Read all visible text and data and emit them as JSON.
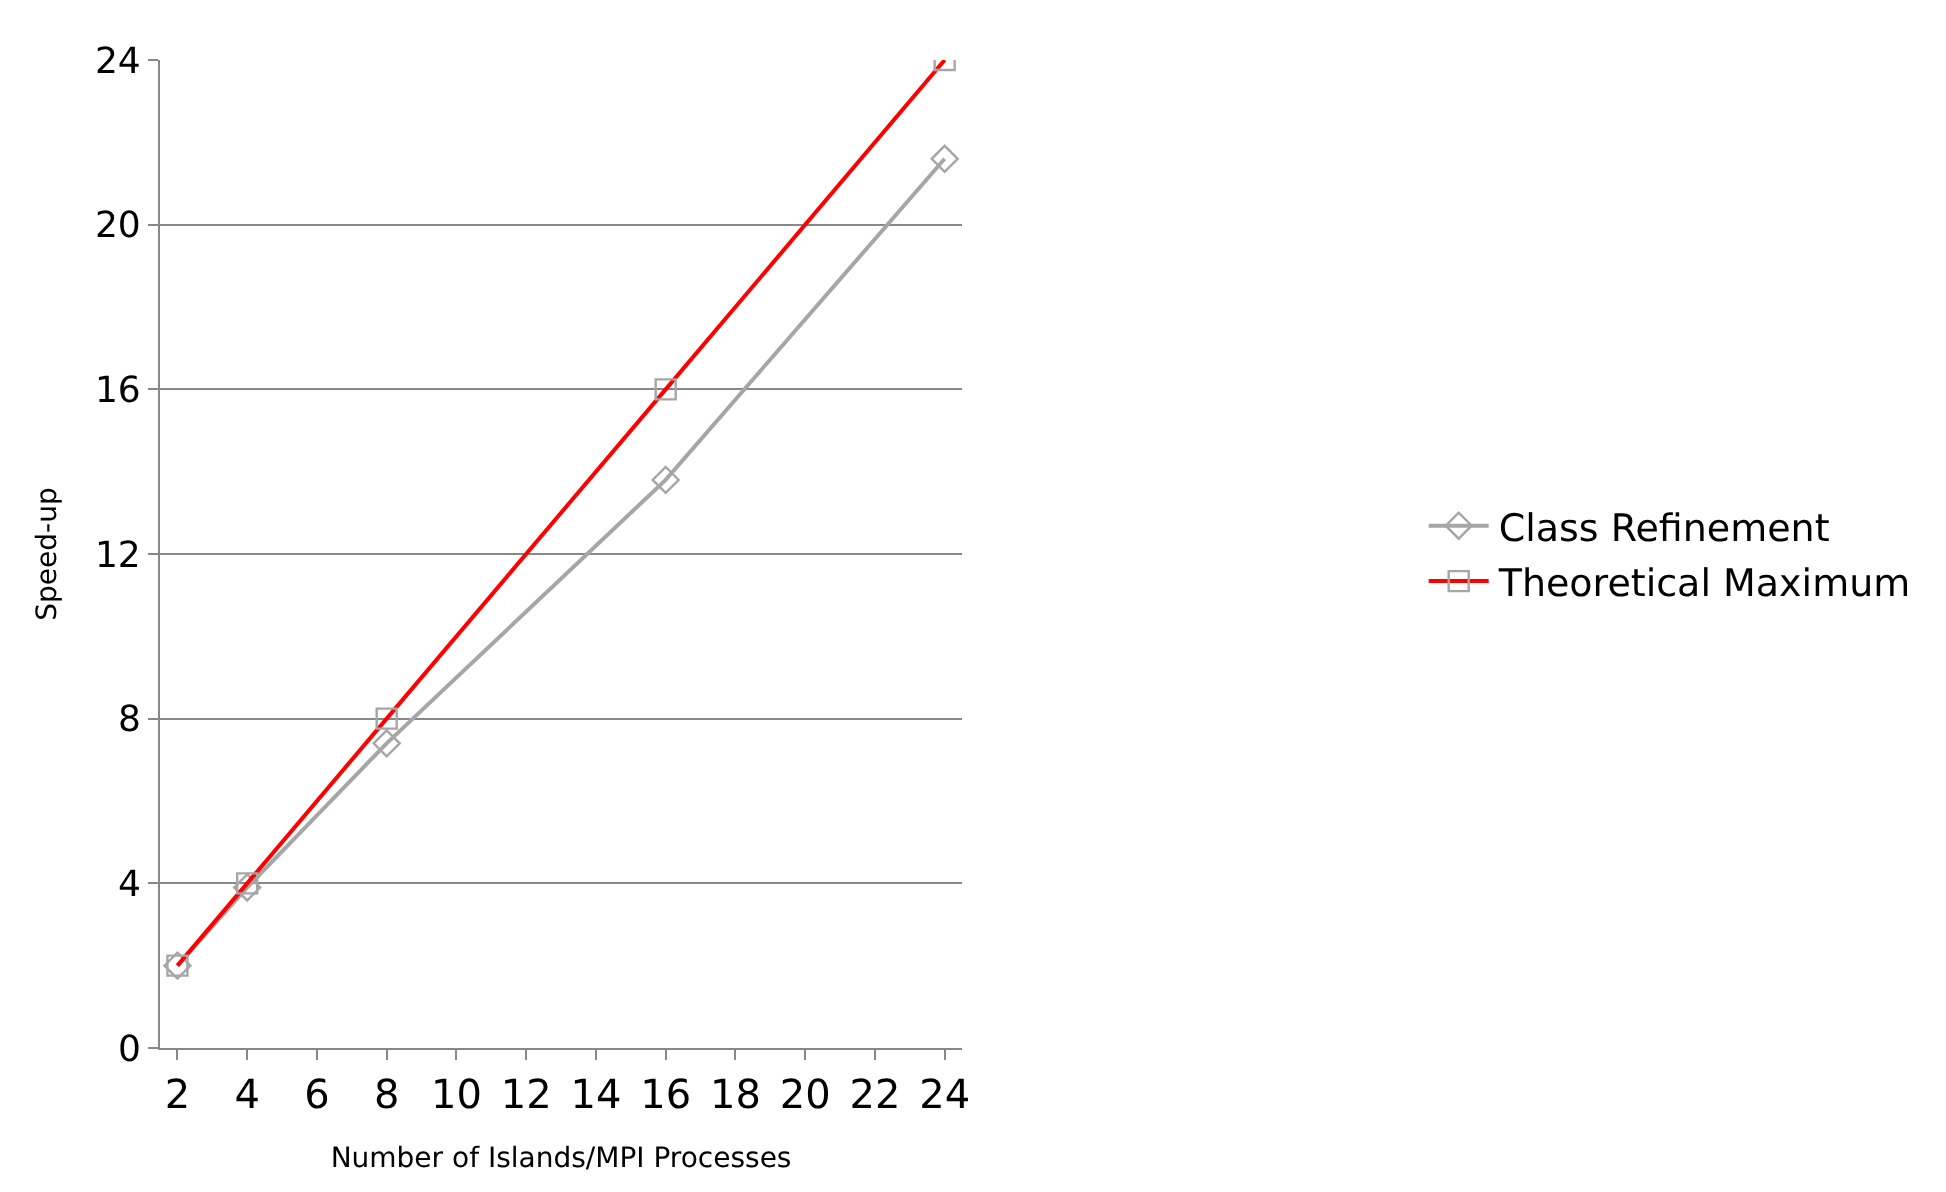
{
  "chart_data": {
    "type": "line",
    "xlabel": "Number of Islands/MPI Processes",
    "ylabel": "Speed-up",
    "x": [
      2,
      4,
      8,
      16,
      24
    ],
    "series": [
      {
        "name": "Class Refinement",
        "color": "#a6a6a6",
        "marker": "diamond",
        "values": [
          2,
          3.9,
          7.4,
          13.8,
          21.6
        ]
      },
      {
        "name": "Theoretical Maximum",
        "color": "#ff0000",
        "marker": "square",
        "values": [
          2,
          4,
          8,
          16,
          24
        ]
      }
    ],
    "xlim": [
      1.5,
      24.5
    ],
    "xticks": [
      2,
      4,
      6,
      8,
      10,
      12,
      14,
      16,
      18,
      20,
      22,
      24
    ],
    "ylim": [
      0,
      24
    ],
    "yticks": [
      0,
      4,
      8,
      12,
      16,
      20,
      24
    ],
    "grid": "y",
    "legend": "right",
    "line_style": "solid"
  }
}
